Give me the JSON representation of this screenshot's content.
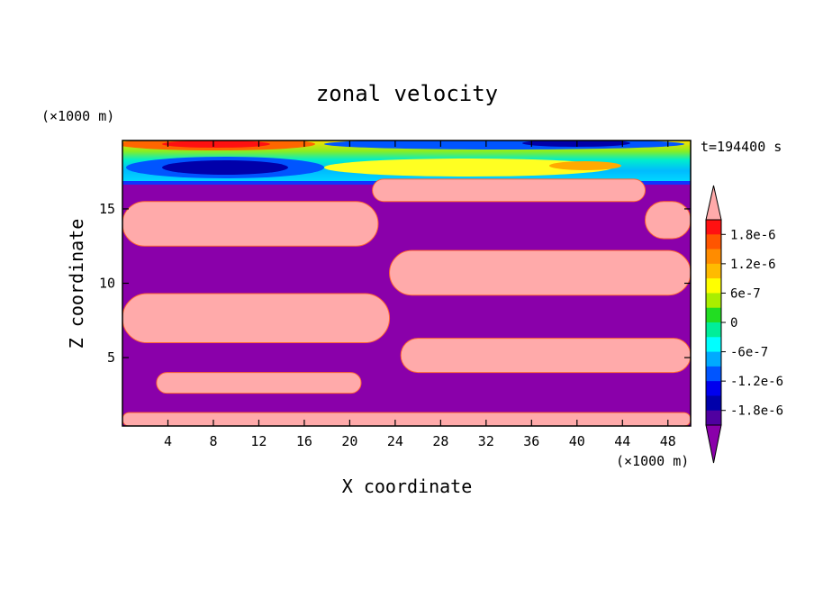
{
  "chart_data": {
    "type": "heatmap",
    "title": "zonal velocity",
    "xlabel": "X coordinate",
    "ylabel": "Z coordinate",
    "x_unit": "(×1000 m)",
    "y_unit": "(×1000 m)",
    "time_label": "t=194400 s",
    "xlim": [
      0,
      50
    ],
    "ylim": [
      0.4,
      19.6
    ],
    "x_ticks": [
      4,
      8,
      12,
      16,
      20,
      24,
      28,
      32,
      36,
      40,
      44,
      48
    ],
    "y_ticks": [
      5,
      10,
      15
    ],
    "colorbar": {
      "levels": [
        "1.8e-6",
        "1.2e-6",
        "6e-7",
        "0",
        "-6e-7",
        "-1.2e-6",
        "-1.8e-6"
      ],
      "level_values": [
        1.8e-06,
        1.2e-06,
        6e-07,
        0,
        -6e-07,
        -1.2e-06,
        -1.8e-06
      ],
      "vmin": -2.1e-06,
      "vmax": 2.1e-06,
      "colors": [
        "#ffaaaa",
        "#ff1111",
        "#ff5500",
        "#ff8c00",
        "#ffbb00",
        "#ffff00",
        "#aaee00",
        "#22dd22",
        "#00ee99",
        "#00ffff",
        "#00aaff",
        "#0055ff",
        "#0000ee",
        "#0000aa",
        "#5000a0",
        "#8a00aa"
      ]
    },
    "regions": [
      {
        "sign": "positive",
        "x": [
          0,
          22.5
        ],
        "z": [
          12.5,
          15.5
        ]
      },
      {
        "sign": "positive",
        "x": [
          0,
          23.5
        ],
        "z": [
          6.0,
          9.3
        ]
      },
      {
        "sign": "positive",
        "x": [
          3,
          21
        ],
        "z": [
          2.6,
          4.0
        ]
      },
      {
        "sign": "positive",
        "x": [
          23.5,
          50
        ],
        "z": [
          9.2,
          12.2
        ]
      },
      {
        "sign": "positive",
        "x": [
          24.5,
          50
        ],
        "z": [
          4.0,
          6.3
        ]
      },
      {
        "sign": "positive",
        "x": [
          22,
          46
        ],
        "z": [
          15.5,
          17.0
        ]
      },
      {
        "sign": "positive",
        "x": [
          46,
          50
        ],
        "z": [
          13.0,
          15.5
        ]
      },
      {
        "sign": "positive",
        "x": [
          0,
          50
        ],
        "z": [
          0.4,
          1.3
        ]
      }
    ]
  }
}
